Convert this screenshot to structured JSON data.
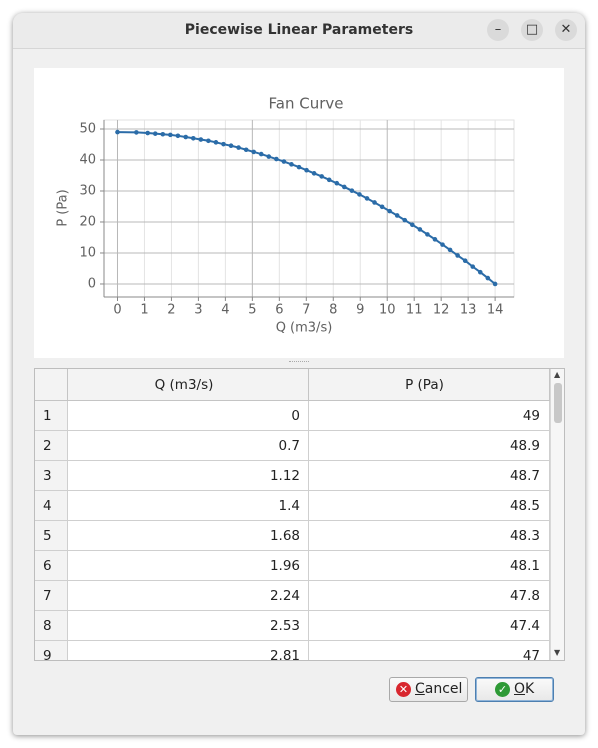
{
  "window": {
    "title": "Piecewise Linear Parameters"
  },
  "chart_data": {
    "type": "line",
    "title": "Fan Curve",
    "x_label": "Q (m3/s)",
    "y_label": "P (Pa)",
    "color": "#2b6ca8",
    "markers": true,
    "grid": true,
    "x": [
      0,
      0.7,
      1.12,
      1.4,
      1.68,
      1.96,
      2.24,
      2.53,
      2.81,
      3.09,
      3.37,
      3.65,
      3.93,
      4.21,
      4.49,
      4.77,
      5.05,
      5.33,
      5.61,
      5.89,
      6.17,
      6.45,
      6.73,
      7.01,
      7.29,
      7.57,
      7.85,
      8.13,
      8.41,
      8.69,
      8.97,
      9.25,
      9.53,
      9.81,
      10.09,
      10.37,
      10.65,
      10.93,
      11.21,
      11.49,
      11.77,
      12.05,
      12.33,
      12.61,
      12.89,
      13.17,
      13.45,
      13.73,
      14
    ],
    "values": [
      49,
      48.9,
      48.7,
      48.5,
      48.3,
      48.1,
      47.8,
      47.4,
      47,
      46.6,
      46.2,
      45.7,
      45.1,
      44.6,
      44.0,
      43.3,
      42.6,
      41.9,
      41.1,
      40.3,
      39.5,
      38.6,
      37.7,
      36.7,
      35.7,
      34.7,
      33.6,
      32.5,
      31.3,
      30.1,
      28.9,
      27.6,
      26.3,
      24.9,
      23.5,
      22.1,
      20.6,
      19.1,
      17.6,
      16.0,
      14.4,
      12.7,
      11.0,
      9.2,
      7.5,
      5.6,
      3.8,
      1.9,
      0
    ],
    "xlim": [
      -0.5,
      14.7
    ],
    "ylim": [
      -4.2,
      52.9
    ],
    "xticks": [
      0,
      1,
      2,
      3,
      4,
      5,
      6,
      7,
      8,
      9,
      10,
      11,
      12,
      13,
      14
    ],
    "yticks": [
      0,
      10,
      20,
      30,
      40,
      50
    ]
  },
  "table": {
    "columns": [
      "Q (m3/s)",
      "P (Pa)"
    ],
    "rows": [
      [
        1,
        0,
        49
      ],
      [
        2,
        0.7,
        48.9
      ],
      [
        3,
        1.12,
        48.7
      ],
      [
        4,
        1.4,
        48.5
      ],
      [
        5,
        1.68,
        48.3
      ],
      [
        6,
        1.96,
        48.1
      ],
      [
        7,
        2.24,
        47.8
      ],
      [
        8,
        2.53,
        47.4
      ],
      [
        9,
        2.81,
        47
      ]
    ]
  },
  "buttons": {
    "cancel": "Cancel",
    "ok": "OK"
  }
}
